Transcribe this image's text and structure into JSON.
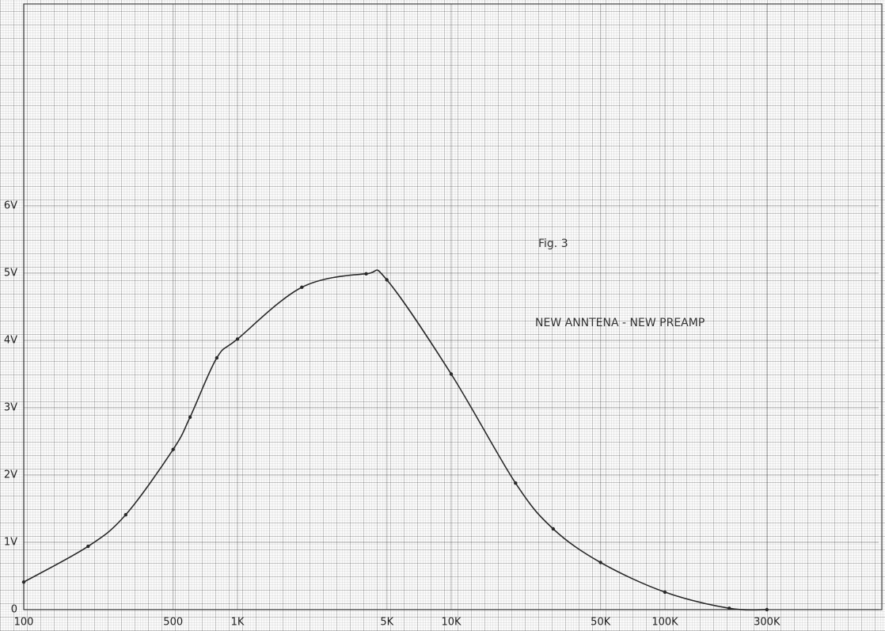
{
  "chart_data": {
    "type": "line",
    "annotations": [
      "Fig. 3",
      "NEW ANNTENA - NEW PREAMP"
    ],
    "x": [
      100,
      200,
      300,
      500,
      600,
      800,
      1000,
      2000,
      4000,
      5000,
      10000,
      20000,
      30000,
      50000,
      100000,
      200000,
      300000
    ],
    "series": [
      {
        "color": "#2a2a2a",
        "values": [
          0.41,
          0.94,
          1.41,
          2.38,
          2.86,
          3.74,
          4.02,
          4.79,
          4.99,
          4.9,
          3.5,
          1.88,
          1.2,
          0.7,
          0.26,
          0.02,
          0
        ]
      }
    ],
    "xscale": "log",
    "xlim": [
      100,
      1000000
    ],
    "ylim": [
      0,
      9
    ],
    "xticks": [
      100,
      500,
      {
        "value": 1000,
        "label": "1K"
      },
      {
        "value": 5000,
        "label": "5K"
      },
      {
        "value": 10000,
        "label": "10K"
      },
      {
        "value": 50000,
        "label": "50K"
      },
      {
        "value": 100000,
        "label": "100K"
      },
      {
        "value": 300000,
        "label": "300K"
      }
    ],
    "yticks": [
      0,
      {
        "value": 1,
        "label": "1V"
      },
      {
        "value": 2,
        "label": "2V"
      },
      {
        "value": 3,
        "label": "3V"
      },
      {
        "value": 4,
        "label": "4V"
      },
      {
        "value": 5,
        "label": "5V"
      },
      {
        "value": 6,
        "label": "6V"
      }
    ],
    "grid": true
  }
}
